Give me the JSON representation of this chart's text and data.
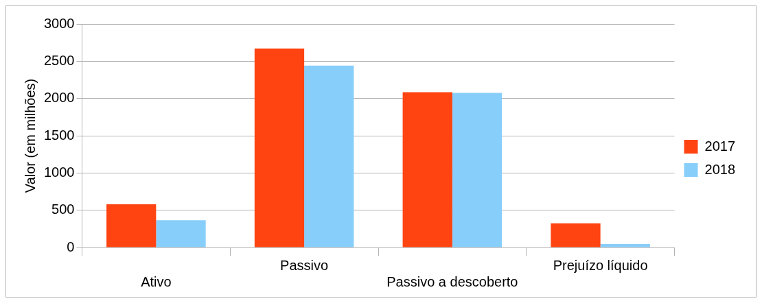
{
  "chart_data": {
    "type": "bar",
    "ylabel": "Valor (em milhões)",
    "categories": [
      "Ativo",
      "Passivo",
      "Passivo a descoberto",
      "Prejuízo líquido"
    ],
    "series": [
      {
        "name": "2017",
        "color": "#ff4411",
        "values": [
          580,
          2670,
          2085,
          325
        ]
      },
      {
        "name": "2018",
        "color": "#87cefa",
        "values": [
          365,
          2440,
          2075,
          45
        ]
      }
    ],
    "ylim": [
      0,
      3000
    ],
    "yticks": [
      0,
      500,
      1000,
      1500,
      2000,
      2500,
      3000
    ],
    "grid": "y",
    "legend": "right"
  }
}
